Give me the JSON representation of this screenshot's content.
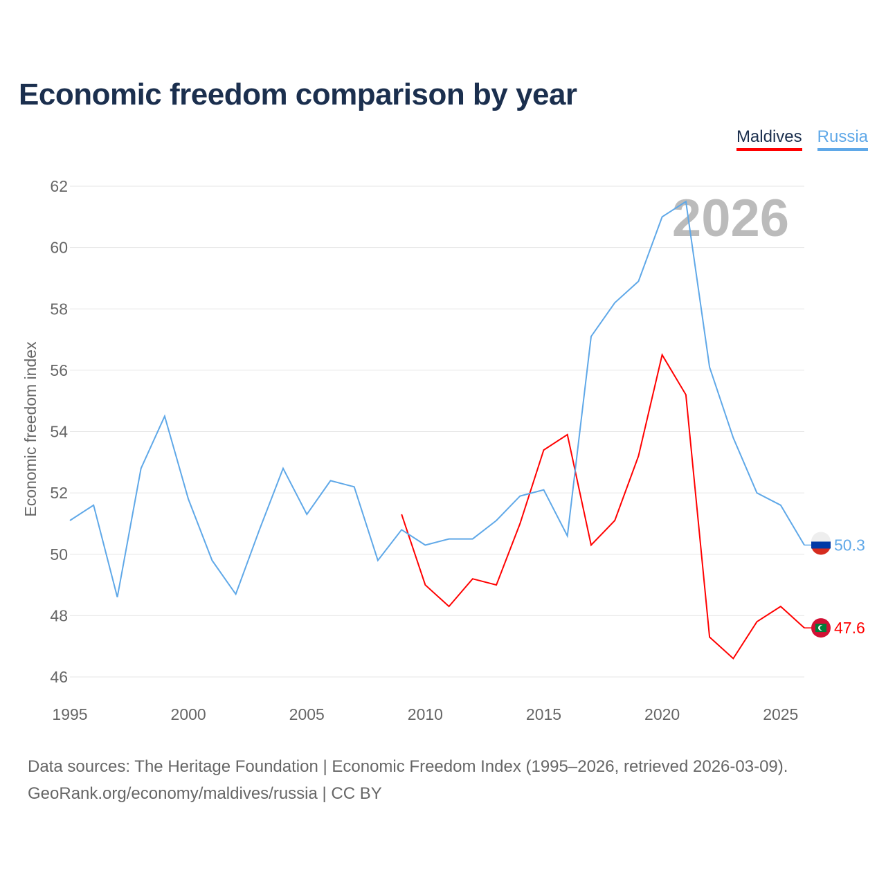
{
  "chart_data": {
    "type": "line",
    "title": "Economic freedom comparison by year",
    "xlabel": "",
    "ylabel": "Economic freedom index",
    "xlim": [
      1995,
      2026
    ],
    "ylim": [
      46,
      62
    ],
    "yticks": [
      46,
      48,
      50,
      52,
      54,
      56,
      58,
      60,
      62
    ],
    "xticks": [
      1995,
      2000,
      2005,
      2010,
      2015,
      2020,
      2025
    ],
    "grid": true,
    "legend_position": "top-right",
    "year_watermark": "2026",
    "series": [
      {
        "name": "Maldives",
        "color": "#ff0000",
        "end_label": "47.6",
        "x": [
          2009,
          2010,
          2011,
          2012,
          2013,
          2014,
          2015,
          2016,
          2017,
          2018,
          2019,
          2020,
          2021,
          2022,
          2023,
          2024,
          2025,
          2026
        ],
        "values": [
          51.3,
          49.0,
          48.3,
          49.2,
          49.0,
          51.0,
          53.4,
          53.9,
          50.3,
          51.1,
          53.2,
          56.5,
          55.2,
          47.3,
          46.6,
          47.8,
          48.3,
          47.6
        ]
      },
      {
        "name": "Russia",
        "color": "#5fa8e8",
        "end_label": "50.3",
        "x": [
          1995,
          1996,
          1997,
          1998,
          1999,
          2000,
          2001,
          2002,
          2003,
          2004,
          2005,
          2006,
          2007,
          2008,
          2009,
          2010,
          2011,
          2012,
          2013,
          2014,
          2015,
          2016,
          2017,
          2018,
          2019,
          2020,
          2021,
          2022,
          2023,
          2024,
          2025,
          2026
        ],
        "values": [
          51.1,
          51.6,
          48.6,
          52.8,
          54.5,
          51.8,
          49.8,
          48.7,
          50.8,
          52.8,
          51.3,
          52.4,
          52.2,
          49.8,
          50.8,
          50.3,
          50.5,
          50.5,
          51.1,
          51.9,
          52.1,
          50.6,
          57.1,
          58.2,
          58.9,
          61.0,
          61.5,
          56.1,
          53.8,
          52.0,
          51.6,
          50.3
        ]
      }
    ]
  },
  "footer": {
    "line1": "Data sources: The Heritage Foundation | Economic Freedom Index (1995–2026, retrieved 2026-03-09).",
    "line2": "GeoRank.org/economy/maldives/russia | CC BY"
  }
}
